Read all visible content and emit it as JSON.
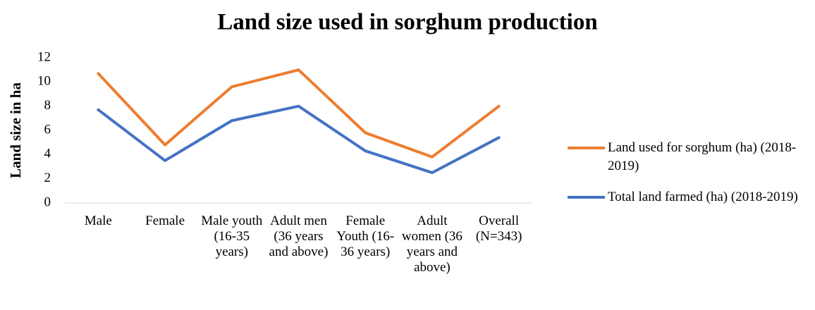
{
  "chart_data": {
    "type": "line",
    "title": "Land size used in sorghum production",
    "y_label": "Land size in ha",
    "categories": [
      "Male",
      "Female",
      "Male youth (16-35 years)",
      "Adult men (36 years and above)",
      "Female Youth (16-36 years)",
      "Adult women (36 years and above)",
      "Overall (N=343)"
    ],
    "series": [
      {
        "name": "Land used for sorghum (ha) (2018-2019)",
        "color": "#ed7d31",
        "values": [
          10.7,
          4.8,
          9.6,
          11.0,
          5.8,
          3.8,
          8.0
        ]
      },
      {
        "name": "Total land farmed (ha) (2018-2019)",
        "color": "#4472c4",
        "values": [
          7.7,
          3.5,
          6.8,
          8.0,
          4.3,
          2.5,
          5.4
        ]
      }
    ],
    "ylim": [
      0,
      12
    ],
    "yticks": [
      0,
      2,
      4,
      6,
      8,
      10,
      12
    ],
    "legend": "right"
  }
}
